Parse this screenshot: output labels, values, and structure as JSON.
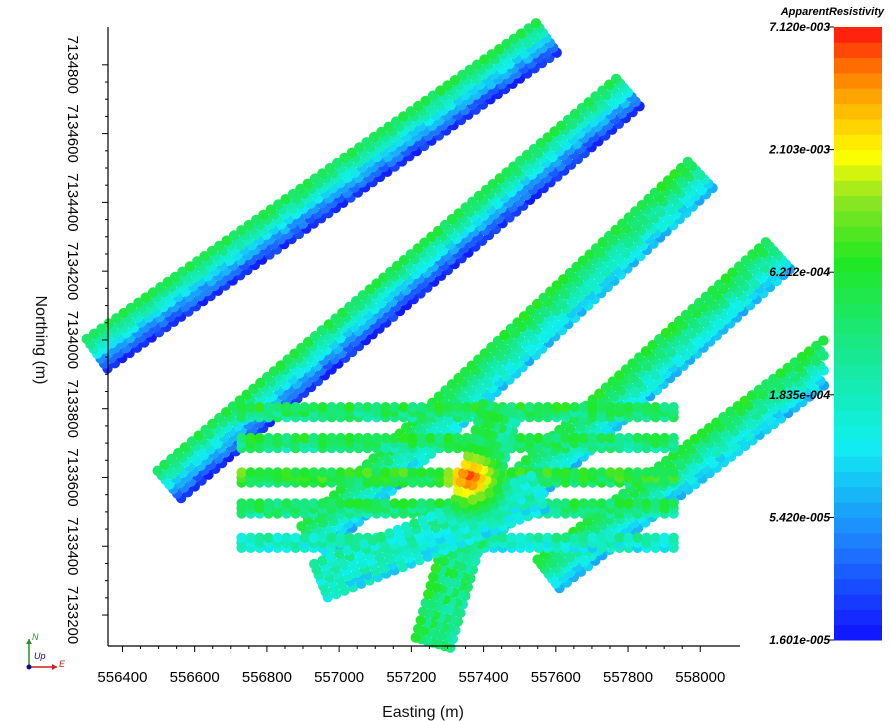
{
  "chart_data": {
    "type": "scatter",
    "title": "",
    "xlabel": "Easting (m)",
    "ylabel": "Northing (m)",
    "x_ticks": [
      "556400",
      "556600",
      "556800",
      "557000",
      "557200",
      "557400",
      "557600",
      "557800",
      "558000"
    ],
    "y_ticks": [
      "7133200",
      "7133400",
      "7133600",
      "7133800",
      "7134000",
      "7134200",
      "7134400",
      "7134600",
      "7134800"
    ],
    "xlim": [
      556360,
      558110
    ],
    "ylim": [
      7133110,
      7134910
    ],
    "colorbar": {
      "title": "ApparentResistivity",
      "scale": "log",
      "range": [
        1.601e-05,
        0.00712
      ],
      "labels": [
        "7.120e-003",
        "2.103e-003",
        "6.212e-004",
        "1.835e-004",
        "5.420e-005",
        "1.601e-005"
      ],
      "label_values": [
        0.00712,
        0.002103,
        0.0006212,
        0.0001835,
        5.42e-05,
        1.601e-05
      ]
    },
    "series": [
      {
        "kind": "diagonal-line",
        "x": [
          556330,
          557590
        ],
        "y": [
          7133960,
          7134890
        ],
        "dominant_resistivity": "low"
      },
      {
        "kind": "diagonal-line",
        "x": [
          556530,
          557800
        ],
        "y": [
          7133580,
          7134720
        ],
        "dominant_resistivity": "low"
      },
      {
        "kind": "diagonal-line",
        "x": [
          556930,
          558000
        ],
        "y": [
          7133420,
          7134480
        ],
        "dominant_resistivity": "medium"
      },
      {
        "kind": "diagonal-line",
        "x": [
          557330,
          558220
        ],
        "y": [
          7133400,
          7134250
        ],
        "dominant_resistivity": "medium"
      },
      {
        "kind": "diagonal-line",
        "x": [
          557580,
          558450
        ],
        "y": [
          7133320,
          7134020
        ],
        "dominant_resistivity": "medium"
      },
      {
        "kind": "horizontal-line",
        "x": [
          556730,
          557950
        ],
        "y": [
          7133790,
          7133790
        ],
        "dominant_resistivity": "medium-high"
      },
      {
        "kind": "horizontal-line",
        "x": [
          556730,
          557950
        ],
        "y": [
          7133700,
          7133700
        ],
        "dominant_resistivity": "medium-high"
      },
      {
        "kind": "horizontal-line",
        "x": [
          556730,
          557950
        ],
        "y": [
          7133600,
          7133600
        ],
        "dominant_resistivity": "high"
      },
      {
        "kind": "horizontal-line",
        "x": [
          556730,
          557950
        ],
        "y": [
          7133510,
          7133510
        ],
        "dominant_resistivity": "medium-high"
      },
      {
        "kind": "horizontal-line",
        "x": [
          556730,
          557950
        ],
        "y": [
          7133410,
          7133410
        ],
        "dominant_resistivity": "medium"
      },
      {
        "kind": "cross-line",
        "x": [
          557260,
          557450
        ],
        "y": [
          7133120,
          7133810
        ],
        "dominant_resistivity": "medium-high"
      },
      {
        "kind": "cross-line",
        "x": [
          556950,
          557560
        ],
        "y": [
          7133300,
          7133560
        ],
        "dominant_resistivity": "medium"
      }
    ],
    "peak": {
      "x": 557360,
      "y": 7133600,
      "value": 0.00712
    },
    "orientation_axes": {
      "labels": [
        "N",
        "Up",
        "E"
      ]
    },
    "grid": false,
    "legend": "colorbar-right"
  },
  "colors": {
    "low": "#0000ff",
    "high": "#ff0000",
    "axis": "#000000",
    "orient_x": "#d91c1c",
    "orient_y": "#2a8c2a",
    "orient_z": "#0b0b9c"
  }
}
